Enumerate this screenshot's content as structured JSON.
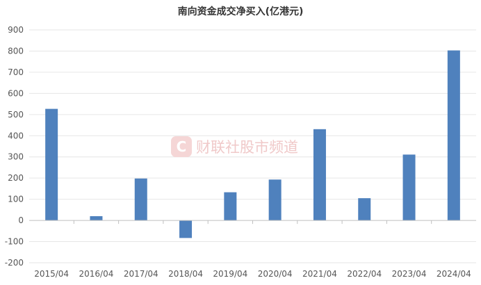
{
  "chart_data": {
    "type": "bar",
    "title": "南向资金成交净买入(亿港元)",
    "categories": [
      "2015/04",
      "2016/04",
      "2017/04",
      "2018/04",
      "2019/04",
      "2020/04",
      "2021/04",
      "2022/04",
      "2023/04",
      "2024/04"
    ],
    "series": [
      {
        "values": [
          527,
          20,
          198,
          -83,
          133,
          193,
          431,
          105,
          311,
          803
        ]
      }
    ],
    "ylim": [
      -200,
      900
    ],
    "yticks": [
      900,
      800,
      700,
      600,
      500,
      400,
      300,
      200,
      100,
      0,
      -100,
      -200
    ],
    "ytick_labels": [
      "900",
      "800",
      "700",
      "600",
      "500",
      "400",
      "300",
      "200",
      "100",
      "0",
      "-100",
      "-200"
    ],
    "grid": true,
    "bar_color": "#4f81bd",
    "grid_color": "#e6e6e6",
    "watermark": "财联社股市频道"
  }
}
